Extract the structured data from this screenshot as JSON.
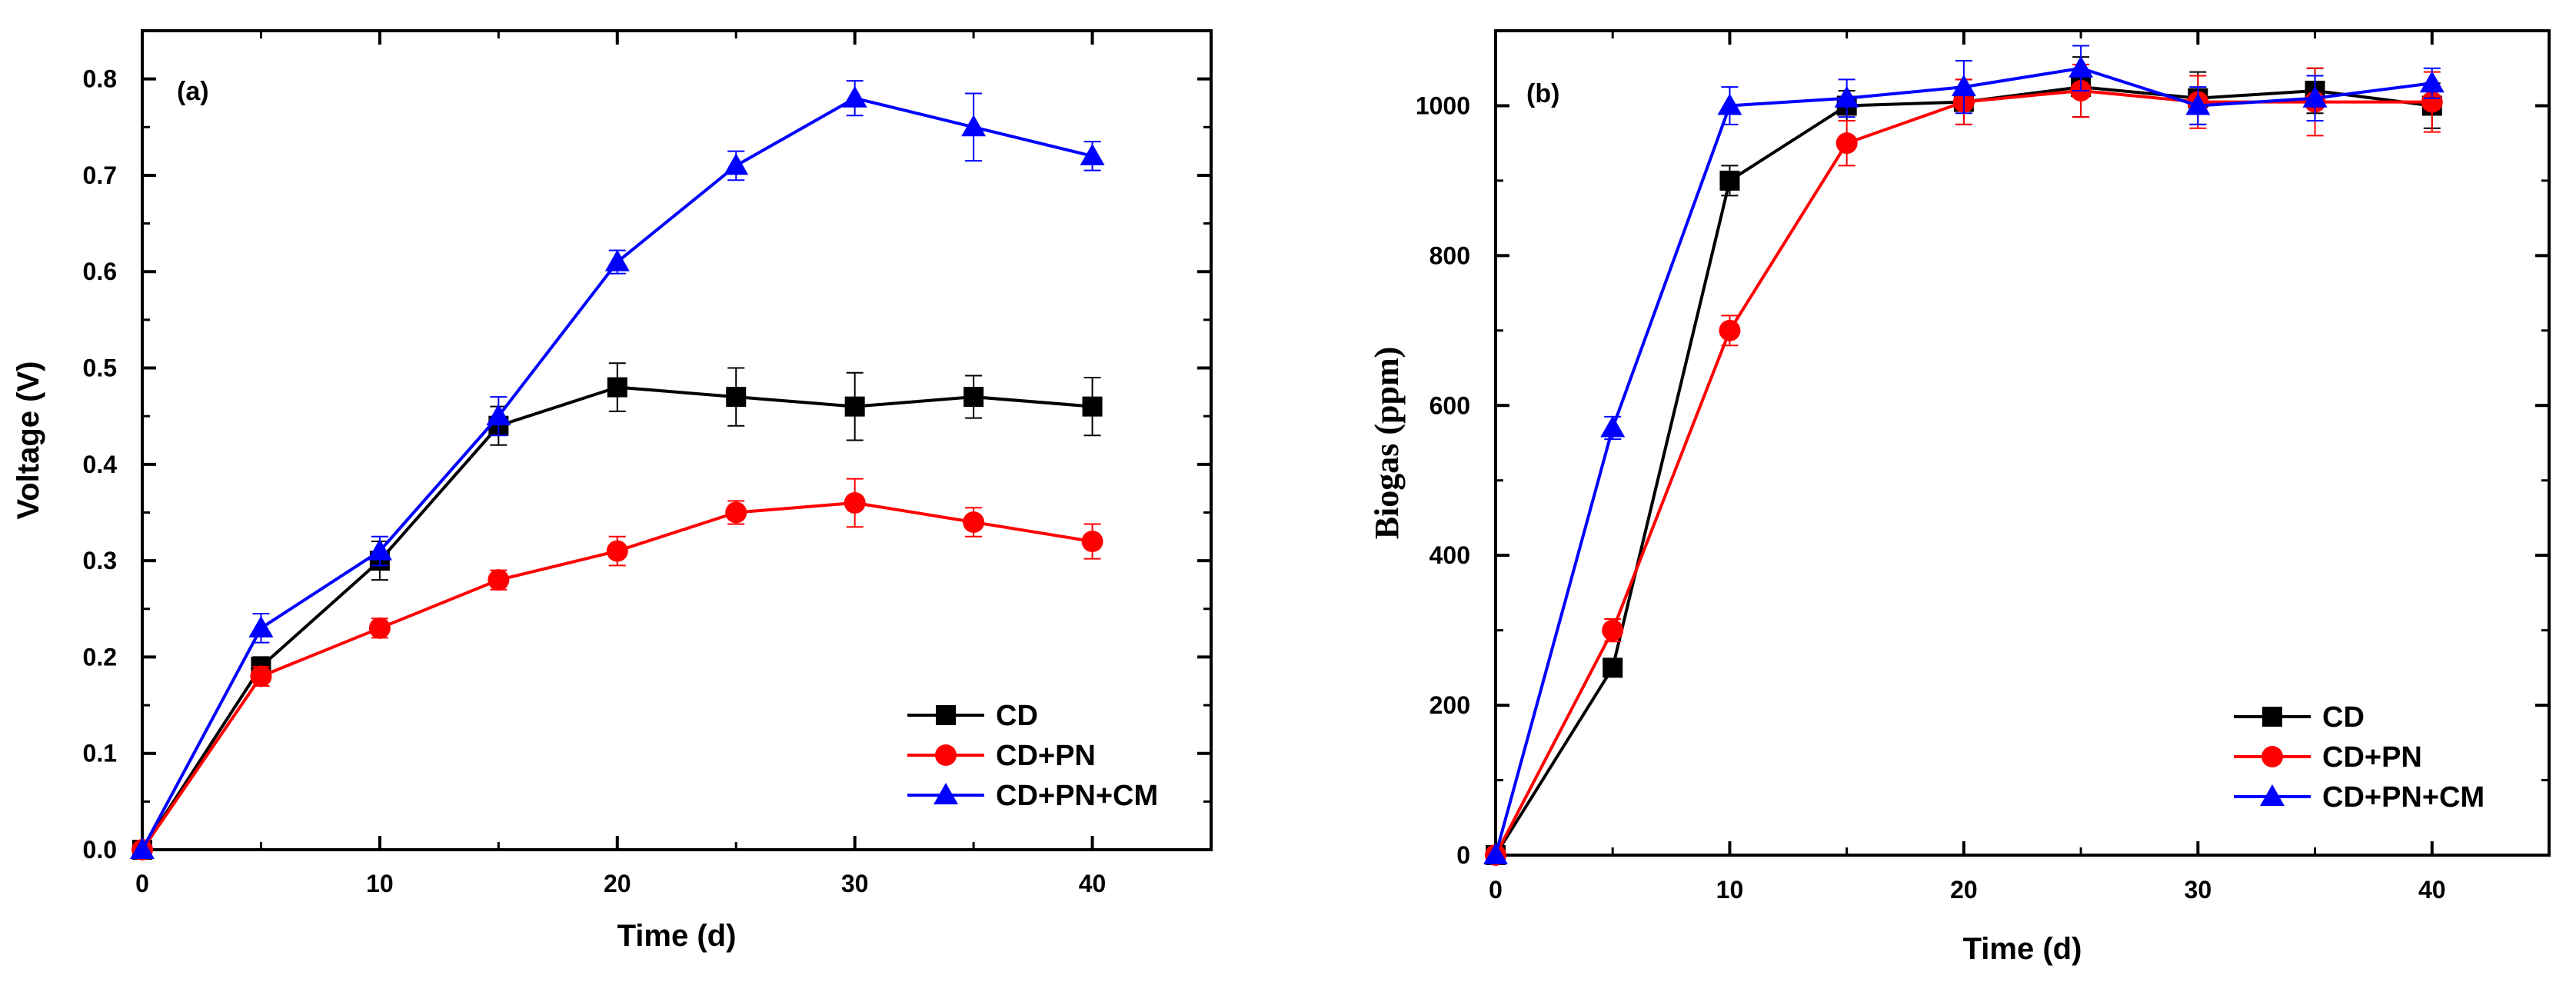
{
  "chart_data": [
    {
      "type": "line",
      "panel_label": "(a)",
      "xlabel": "Time (d)",
      "ylabel": "Voltage (V)",
      "xlim": [
        0,
        45
      ],
      "ylim": [
        0,
        0.85
      ],
      "xticks": [
        0,
        10,
        20,
        30,
        40
      ],
      "xtick_labels": [
        "0",
        "10",
        "20",
        "30",
        "40"
      ],
      "yticks": [
        0,
        0.1,
        0.2,
        0.3,
        0.4,
        0.5,
        0.6,
        0.7,
        0.8
      ],
      "ytick_labels": [
        "0.0",
        "0.1",
        "0.2",
        "0.3",
        "0.4",
        "0.5",
        "0.6",
        "0.7",
        "0.8"
      ],
      "legend_position": "bottom-right",
      "x": [
        0,
        5,
        10,
        15,
        20,
        25,
        30,
        35,
        40
      ],
      "series": [
        {
          "name": "CD",
          "color": "#000000",
          "marker": "square",
          "values": [
            0,
            0.19,
            0.3,
            0.44,
            0.48,
            0.47,
            0.46,
            0.47,
            0.46
          ],
          "errors": [
            0,
            0.01,
            0.02,
            0.02,
            0.025,
            0.03,
            0.035,
            0.022,
            0.03
          ]
        },
        {
          "name": "CD+PN",
          "color": "#ff0000",
          "marker": "circle",
          "values": [
            0,
            0.18,
            0.23,
            0.28,
            0.31,
            0.35,
            0.36,
            0.34,
            0.32
          ],
          "errors": [
            0,
            0.01,
            0.01,
            0.01,
            0.015,
            0.012,
            0.025,
            0.015,
            0.018
          ]
        },
        {
          "name": "CD+PN+CM",
          "color": "#0000ff",
          "marker": "triangle",
          "values": [
            0,
            0.23,
            0.31,
            0.45,
            0.61,
            0.71,
            0.78,
            0.75,
            0.72
          ],
          "errors": [
            0,
            0.015,
            0.015,
            0.02,
            0.012,
            0.015,
            0.018,
            0.035,
            0.015
          ]
        }
      ]
    },
    {
      "type": "line",
      "panel_label": "(b)",
      "xlabel": "Time (d)",
      "ylabel": "Biogas (ppm)",
      "xlim": [
        0,
        45
      ],
      "ylim": [
        0,
        1100
      ],
      "xticks": [
        0,
        10,
        20,
        30,
        40
      ],
      "xtick_labels": [
        "0",
        "10",
        "20",
        "30",
        "40"
      ],
      "yticks": [
        0,
        200,
        400,
        600,
        800,
        1000
      ],
      "ytick_labels": [
        "0",
        "200",
        "400",
        "600",
        "800",
        "1000"
      ],
      "legend_position": "bottom-right",
      "x": [
        0,
        5,
        10,
        15,
        20,
        25,
        30,
        35,
        40
      ],
      "series": [
        {
          "name": "CD",
          "color": "#000000",
          "marker": "square",
          "values": [
            0,
            250,
            900,
            1000,
            1005,
            1025,
            1010,
            1020,
            1000
          ],
          "errors": [
            0,
            10,
            20,
            20,
            30,
            40,
            35,
            30,
            30
          ]
        },
        {
          "name": "CD+PN",
          "color": "#ff0000",
          "marker": "circle",
          "values": [
            0,
            300,
            700,
            950,
            1005,
            1020,
            1005,
            1005,
            1005
          ],
          "errors": [
            0,
            15,
            20,
            30,
            30,
            35,
            35,
            45,
            40
          ]
        },
        {
          "name": "CD+PN+CM",
          "color": "#0000ff",
          "marker": "triangle",
          "values": [
            0,
            570,
            1000,
            1010,
            1025,
            1050,
            1000,
            1010,
            1030
          ],
          "errors": [
            0,
            15,
            25,
            25,
            35,
            30,
            25,
            30,
            20
          ]
        }
      ]
    }
  ]
}
